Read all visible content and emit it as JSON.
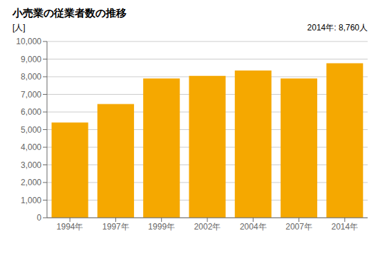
{
  "chart_data": {
    "type": "bar",
    "title": "小売業の従業者数の推移",
    "y_label": "[人]",
    "annotation": "2014年: 8,760人",
    "categories": [
      "1994年",
      "1997年",
      "1999年",
      "2002年",
      "2004年",
      "2007年",
      "2014年"
    ],
    "values": [
      5400,
      6450,
      7900,
      8050,
      8350,
      7900,
      8760
    ],
    "color": "#F5A800",
    "ylim": [
      0,
      10000
    ],
    "yticks": [
      0,
      {
        "value": 1000,
        "label": "1,000"
      },
      {
        "value": 2000,
        "label": "2,000"
      },
      {
        "value": 3000,
        "label": "3,000"
      },
      {
        "value": 4000,
        "label": "4,000"
      },
      {
        "value": 5000,
        "label": "5,000"
      },
      {
        "value": 6000,
        "label": "6,000"
      },
      {
        "value": 7000,
        "label": "7,000"
      },
      {
        "value": 8000,
        "label": "8,000"
      },
      {
        "value": 9000,
        "label": "9,000"
      },
      {
        "value": 10000,
        "label": "10,000"
      }
    ],
    "grid": true
  }
}
